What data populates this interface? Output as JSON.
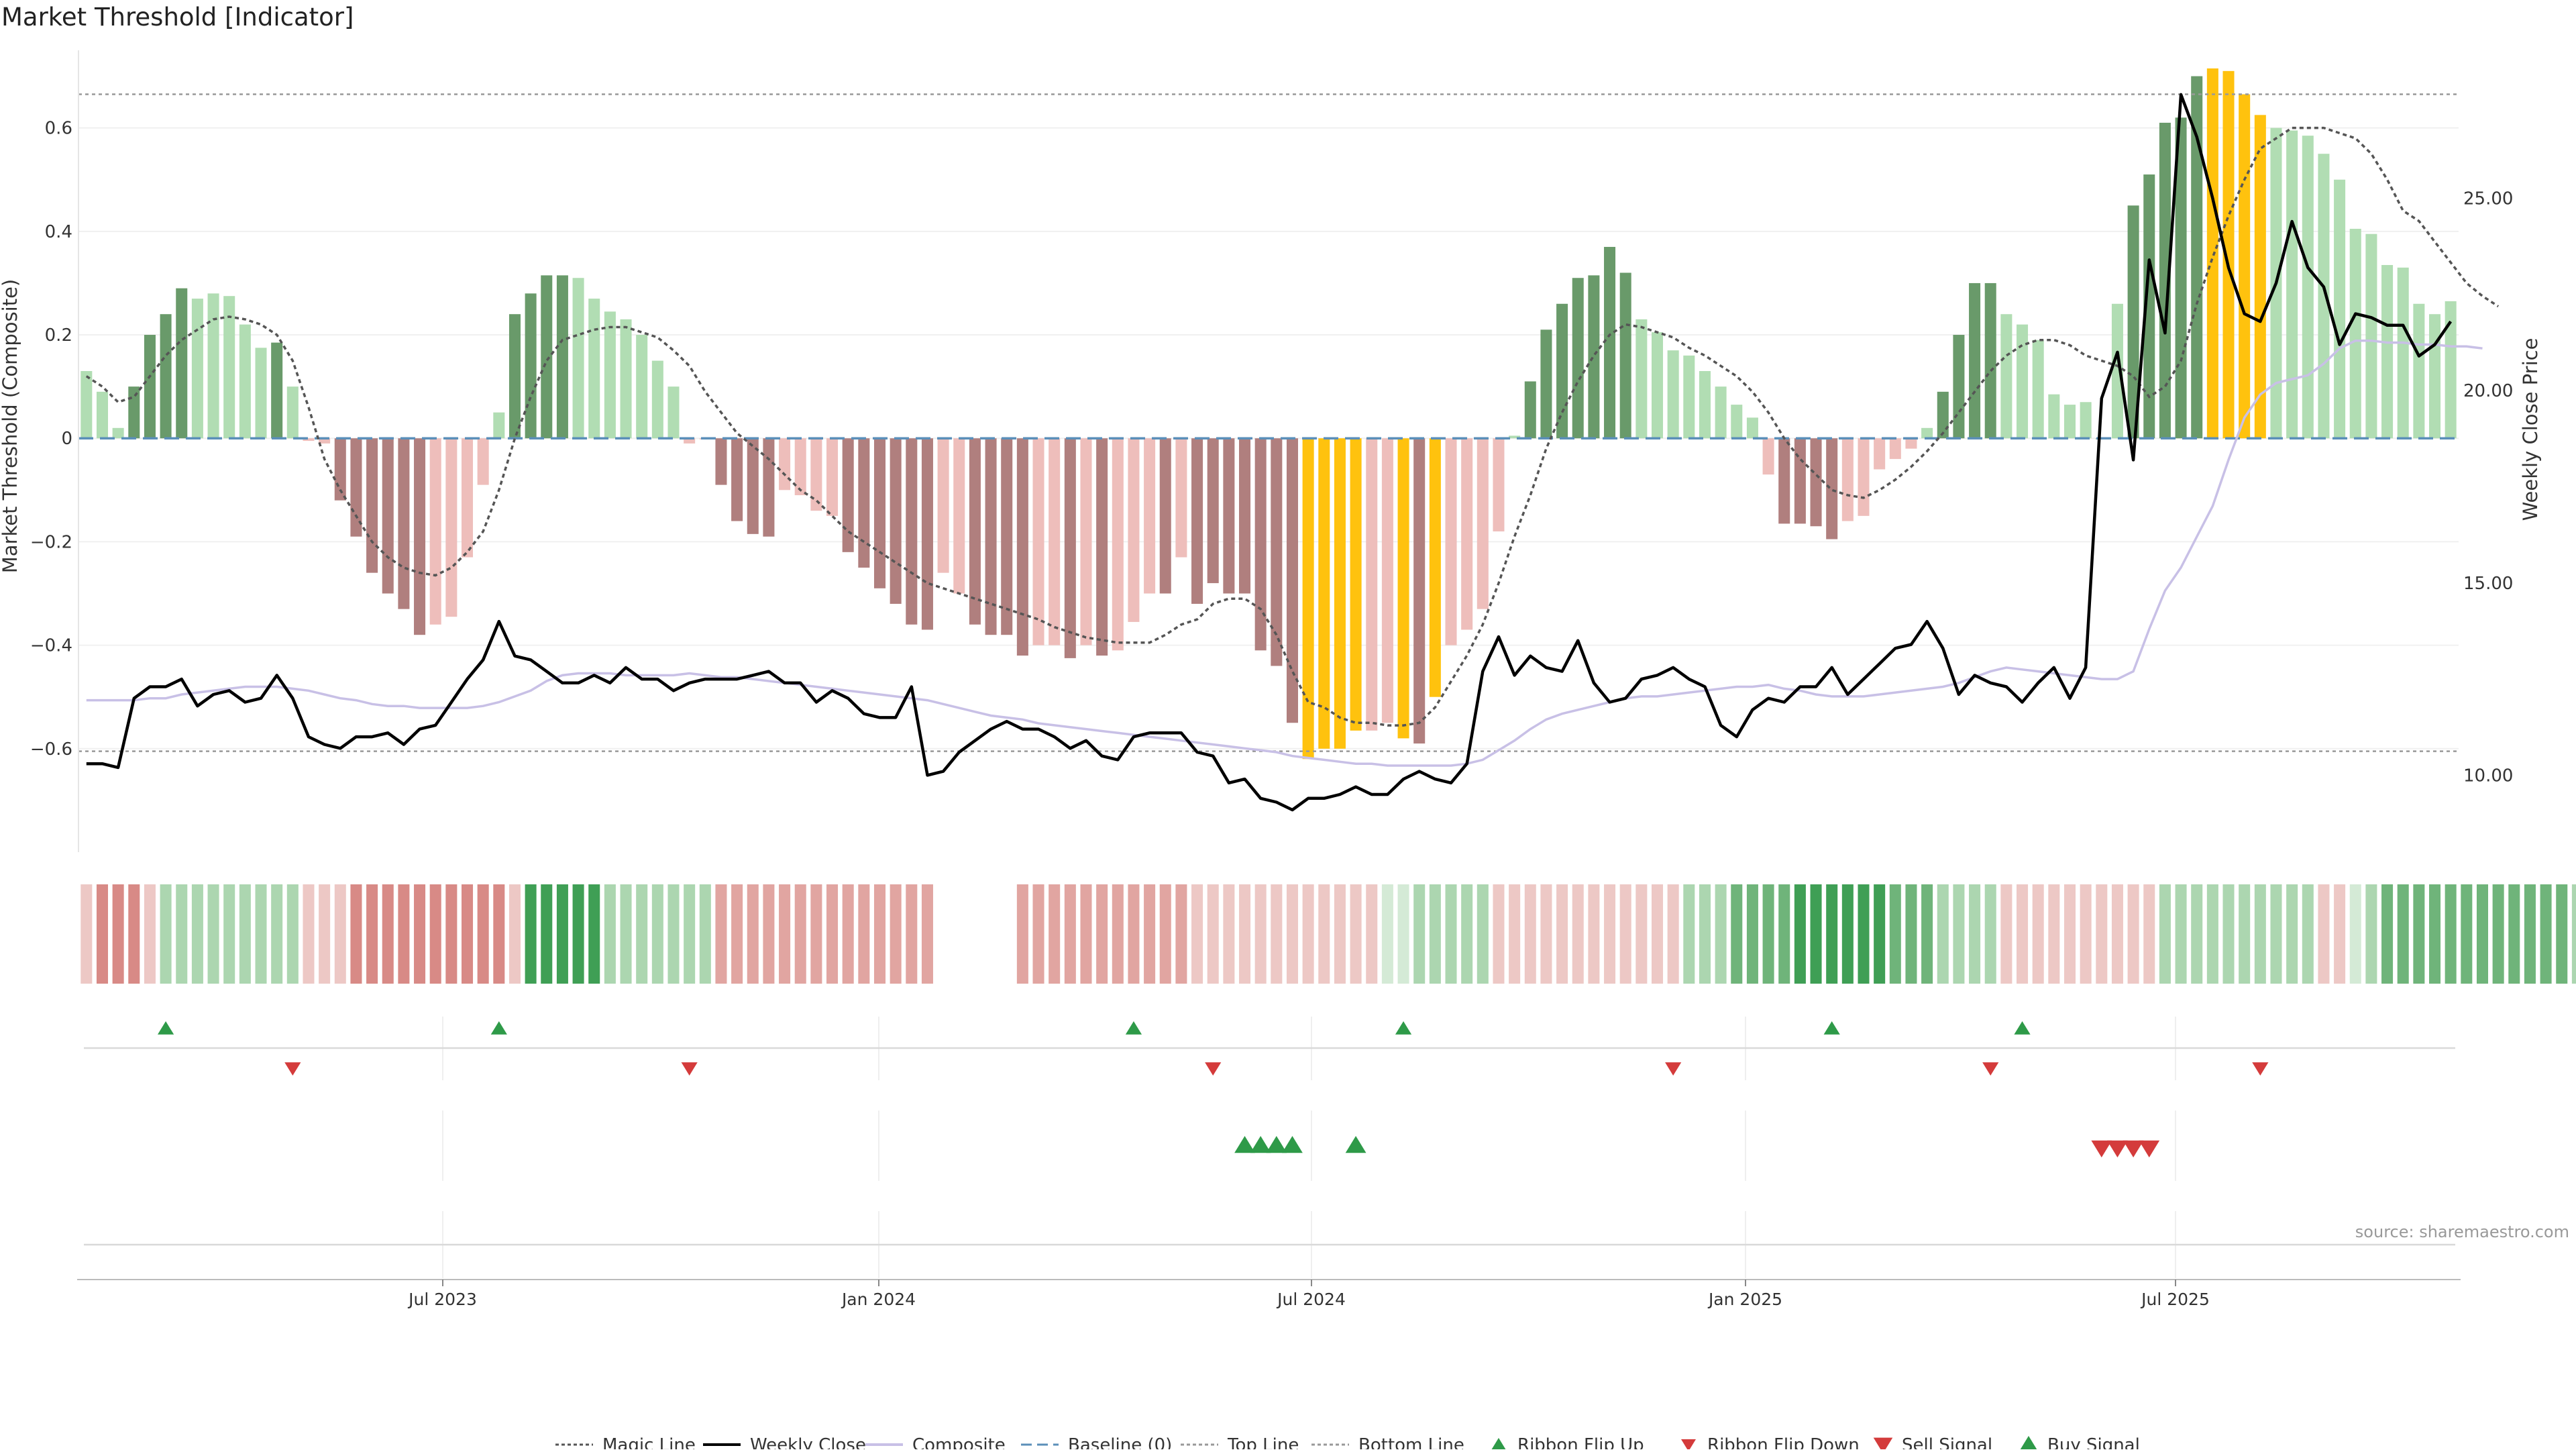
{
  "title": "Market Threshold [Indicator]",
  "source": "source: sharemaestro.com",
  "colors": {
    "bar_green_dark": "#699a6a",
    "bar_green_light": "#b1ddb3",
    "bar_red_dark": "#b07f7e",
    "bar_red_light": "#eebebb",
    "bar_gold": "#ffc20e",
    "weekly_close": "#000000",
    "composite": "#c8c0e6",
    "magic_line": "#555555",
    "baseline": "#5b8fb9",
    "ref_lines": "#999999",
    "signal_up": "#2e9a48",
    "signal_down": "#d43b3b"
  },
  "chart_data": {
    "type": "bar",
    "title": "Market Threshold [Indicator]",
    "ylabel": "Market Threshold (Composite)",
    "y2label": "Weekly Close Price",
    "ylim": [
      -0.8,
      0.75
    ],
    "y2lim": [
      8,
      28.85
    ],
    "yticks": [
      "0.6",
      "0.4",
      "0.2",
      "0",
      "−0.2",
      "−0.4",
      "−0.6"
    ],
    "y2ticks": [
      "25.00",
      "20.00",
      "15.00",
      "10.00"
    ],
    "xticks": [
      "Jul 2023",
      "Jan 2024",
      "Jul 2024",
      "Jan 2025",
      "Jul 2025"
    ],
    "top_line": 0.665,
    "bottom_line": -0.605,
    "bars": [
      0.13,
      0.09,
      0.02,
      0.1,
      0.2,
      0.24,
      0.29,
      0.27,
      0.28,
      0.275,
      0.22,
      0.175,
      0.185,
      0.1,
      -0.005,
      -0.01,
      -0.12,
      -0.19,
      -0.26,
      -0.3,
      -0.33,
      -0.38,
      -0.36,
      -0.345,
      -0.23,
      -0.09,
      0.05,
      0.24,
      0.28,
      0.315,
      0.315,
      0.31,
      0.27,
      0.245,
      0.23,
      0.2,
      0.15,
      0.1,
      -0.01,
      0.0,
      -0.09,
      -0.16,
      -0.185,
      -0.19,
      -0.1,
      -0.11,
      -0.14,
      -0.15,
      -0.22,
      -0.25,
      -0.29,
      -0.32,
      -0.36,
      -0.37,
      -0.26,
      -0.3,
      -0.36,
      -0.38,
      -0.38,
      -0.42,
      -0.4,
      -0.4,
      -0.425,
      -0.4,
      -0.42,
      -0.41,
      -0.355,
      -0.3,
      -0.3,
      -0.23,
      -0.32,
      -0.28,
      -0.3,
      -0.3,
      -0.41,
      -0.44,
      -0.55,
      -0.62,
      -0.6,
      -0.6,
      -0.565,
      -0.565,
      -0.55,
      -0.58,
      -0.59,
      -0.5,
      -0.4,
      -0.37,
      -0.33,
      -0.18,
      0.005,
      0.11,
      0.21,
      0.26,
      0.31,
      0.315,
      0.37,
      0.32,
      0.23,
      0.205,
      0.17,
      0.16,
      0.13,
      0.1,
      0.065,
      0.04,
      -0.07,
      -0.165,
      -0.165,
      -0.17,
      -0.195,
      -0.16,
      -0.15,
      -0.06,
      -0.04,
      -0.02,
      0.02,
      0.09,
      0.2,
      0.3,
      0.3,
      0.24,
      0.22,
      0.19,
      0.085,
      0.065,
      0.07,
      0.0,
      0.26,
      0.45,
      0.51,
      0.61,
      0.62,
      0.7,
      0.715,
      0.71,
      0.665,
      0.625,
      0.6,
      0.595,
      0.585,
      0.55,
      0.5,
      0.405,
      0.395,
      0.335,
      0.33,
      0.26,
      0.24,
      0.265
    ],
    "bar_colors": [
      "gl",
      "gl",
      "gl",
      "gd",
      "gd",
      "gd",
      "gd",
      "gl",
      "gl",
      "gl",
      "gl",
      "gl",
      "gd",
      "gl",
      "rl",
      "rl",
      "rd",
      "rd",
      "rd",
      "rd",
      "rd",
      "rd",
      "rl",
      "rl",
      "rl",
      "rl",
      "gl",
      "gd",
      "gd",
      "gd",
      "gd",
      "gl",
      "gl",
      "gl",
      "gl",
      "gl",
      "gl",
      "gl",
      "rl",
      "rl",
      "rd",
      "rd",
      "rd",
      "rd",
      "rl",
      "rl",
      "rl",
      "rl",
      "rd",
      "rd",
      "rd",
      "rd",
      "rd",
      "rd",
      "rl",
      "rl",
      "rd",
      "rd",
      "rd",
      "rd",
      "rl",
      "rl",
      "rd",
      "rl",
      "rd",
      "rl",
      "rl",
      "rl",
      "rd",
      "rl",
      "rd",
      "rd",
      "rd",
      "rd",
      "rd",
      "rd",
      "rd",
      "au",
      "au",
      "au",
      "au",
      "rl",
      "rl",
      "au",
      "rd",
      "au",
      "rl",
      "rl",
      "rl",
      "rl",
      "gl",
      "gd",
      "gd",
      "gd",
      "gd",
      "gd",
      "gd",
      "gd",
      "gl",
      "gl",
      "gl",
      "gl",
      "gl",
      "gl",
      "gl",
      "gl",
      "rl",
      "rd",
      "rd",
      "rd",
      "rd",
      "rl",
      "rl",
      "rl",
      "rl",
      "rl",
      "gl",
      "gd",
      "gd",
      "gd",
      "gd",
      "gl",
      "gl",
      "gl",
      "gl",
      "gl",
      "gl",
      "gd",
      "gl",
      "gd",
      "gd",
      "gd",
      "gd",
      "gd",
      "au",
      "au",
      "au",
      "au",
      "gl",
      "gl",
      "gl",
      "gl",
      "gl",
      "gl",
      "gl",
      "gl",
      "gl",
      "gl",
      "gl",
      "gl",
      "gl",
      "gd"
    ],
    "series": [
      {
        "name": "Magic Line",
        "y_axis": "left",
        "values": [
          0.12,
          0.1,
          0.07,
          0.08,
          0.12,
          0.16,
          0.19,
          0.21,
          0.23,
          0.235,
          0.23,
          0.22,
          0.2,
          0.15,
          0.06,
          -0.04,
          -0.1,
          -0.15,
          -0.2,
          -0.23,
          -0.25,
          -0.26,
          -0.265,
          -0.25,
          -0.22,
          -0.18,
          -0.1,
          0.0,
          0.08,
          0.15,
          0.19,
          0.2,
          0.21,
          0.215,
          0.215,
          0.205,
          0.195,
          0.17,
          0.14,
          0.09,
          0.05,
          0.01,
          -0.015,
          -0.04,
          -0.07,
          -0.1,
          -0.12,
          -0.15,
          -0.18,
          -0.2,
          -0.22,
          -0.24,
          -0.26,
          -0.28,
          -0.29,
          -0.3,
          -0.31,
          -0.32,
          -0.33,
          -0.34,
          -0.35,
          -0.365,
          -0.375,
          -0.385,
          -0.39,
          -0.395,
          -0.395,
          -0.395,
          -0.38,
          -0.36,
          -0.35,
          -0.32,
          -0.31,
          -0.31,
          -0.33,
          -0.38,
          -0.45,
          -0.51,
          -0.52,
          -0.54,
          -0.55,
          -0.55,
          -0.555,
          -0.555,
          -0.55,
          -0.52,
          -0.47,
          -0.42,
          -0.36,
          -0.28,
          -0.19,
          -0.11,
          -0.02,
          0.05,
          0.11,
          0.16,
          0.2,
          0.22,
          0.215,
          0.205,
          0.195,
          0.175,
          0.16,
          0.14,
          0.12,
          0.09,
          0.05,
          0.0,
          -0.04,
          -0.07,
          -0.1,
          -0.11,
          -0.115,
          -0.1,
          -0.08,
          -0.055,
          -0.025,
          0.01,
          0.05,
          0.09,
          0.13,
          0.16,
          0.18,
          0.19,
          0.19,
          0.18,
          0.16,
          0.15,
          0.14,
          0.12,
          0.08,
          0.1,
          0.15,
          0.26,
          0.35,
          0.43,
          0.5,
          0.56,
          0.58,
          0.6,
          0.6,
          0.6,
          0.59,
          0.58,
          0.55,
          0.5,
          0.44,
          0.42,
          0.38,
          0.34,
          0.3,
          0.275,
          0.255
        ]
      },
      {
        "name": "Weekly Close",
        "y_axis": "right",
        "values": [
          10.3,
          10.3,
          10.2,
          12.0,
          12.3,
          12.3,
          12.5,
          11.8,
          12.1,
          12.2,
          11.9,
          12.0,
          12.6,
          12.0,
          11.0,
          10.8,
          10.7,
          11.0,
          11.0,
          11.1,
          10.8,
          11.2,
          11.3,
          11.9,
          12.5,
          13.0,
          14.0,
          13.1,
          13.0,
          12.7,
          12.4,
          12.4,
          12.6,
          12.4,
          12.8,
          12.5,
          12.5,
          12.2,
          12.4,
          12.5,
          12.5,
          12.5,
          12.6,
          12.7,
          12.4,
          12.4,
          11.9,
          12.2,
          12.0,
          11.6,
          11.5,
          11.5,
          12.3,
          10.0,
          10.1,
          10.6,
          10.9,
          11.2,
          11.4,
          11.2,
          11.2,
          11.0,
          10.7,
          10.9,
          10.5,
          10.4,
          11.0,
          11.1,
          11.1,
          11.1,
          10.6,
          10.5,
          9.8,
          9.9,
          9.4,
          9.3,
          9.1,
          9.4,
          9.4,
          9.5,
          9.7,
          9.5,
          9.5,
          9.9,
          10.1,
          9.9,
          9.8,
          10.3,
          12.7,
          13.6,
          12.6,
          13.1,
          12.8,
          12.7,
          13.5,
          12.4,
          11.9,
          12.0,
          12.5,
          12.6,
          12.8,
          12.5,
          12.3,
          11.3,
          11.0,
          11.7,
          12.0,
          11.9,
          12.3,
          12.3,
          12.8,
          12.1,
          12.5,
          12.9,
          13.3,
          13.4,
          14.0,
          13.3,
          12.1,
          12.6,
          12.4,
          12.3,
          11.9,
          12.4,
          12.8,
          12.0,
          12.8,
          19.8,
          21.0,
          18.2,
          23.4,
          21.5,
          27.7,
          26.6,
          25.0,
          23.2,
          22.0,
          21.8,
          22.8,
          24.4,
          23.2,
          22.7,
          21.2,
          22.0,
          21.9,
          21.7,
          21.7,
          20.9,
          21.2,
          21.8
        ]
      },
      {
        "name": "Composite",
        "y_axis": "right",
        "values": [
          11.95,
          11.95,
          11.95,
          11.95,
          12.0,
          12.0,
          12.1,
          12.15,
          12.2,
          12.25,
          12.3,
          12.3,
          12.3,
          12.25,
          12.2,
          12.1,
          12.0,
          11.95,
          11.85,
          11.8,
          11.8,
          11.75,
          11.75,
          11.75,
          11.75,
          11.8,
          11.9,
          12.05,
          12.2,
          12.45,
          12.6,
          12.65,
          12.65,
          12.65,
          12.6,
          12.6,
          12.6,
          12.6,
          12.65,
          12.6,
          12.55,
          12.55,
          12.5,
          12.45,
          12.4,
          12.35,
          12.3,
          12.25,
          12.2,
          12.15,
          12.1,
          12.05,
          12.0,
          11.95,
          11.85,
          11.75,
          11.65,
          11.55,
          11.5,
          11.45,
          11.35,
          11.3,
          11.25,
          11.2,
          11.15,
          11.1,
          11.05,
          11.0,
          10.95,
          10.9,
          10.85,
          10.8,
          10.75,
          10.7,
          10.65,
          10.6,
          10.5,
          10.45,
          10.4,
          10.35,
          10.3,
          10.3,
          10.25,
          10.25,
          10.25,
          10.25,
          10.25,
          10.3,
          10.4,
          10.65,
          10.9,
          11.2,
          11.45,
          11.6,
          11.7,
          11.8,
          11.9,
          12.0,
          12.05,
          12.05,
          12.1,
          12.15,
          12.2,
          12.25,
          12.3,
          12.3,
          12.35,
          12.25,
          12.2,
          12.1,
          12.05,
          12.05,
          12.05,
          12.1,
          12.15,
          12.2,
          12.25,
          12.3,
          12.4,
          12.55,
          12.7,
          12.8,
          12.75,
          12.7,
          12.65,
          12.6,
          12.55,
          12.5,
          12.5,
          12.7,
          13.8,
          14.8,
          15.4,
          16.2,
          17.0,
          18.2,
          19.3,
          19.9,
          20.2,
          20.3,
          20.4,
          20.7,
          21.1,
          21.3,
          21.3,
          21.25,
          21.25,
          21.2,
          21.2,
          21.15,
          21.15,
          21.1
        ]
      }
    ],
    "ribbon": [
      "rl",
      "rd",
      "rd",
      "rd",
      "rl",
      "gl",
      "gl",
      "gl",
      "gl",
      "gl",
      "gl",
      "gl",
      "gl",
      "gl",
      "rl",
      "rl",
      "rl",
      "rd",
      "rd",
      "rd",
      "rd",
      "rd",
      "rd",
      "rd",
      "rd",
      "rd",
      "rd",
      "rl",
      "gd",
      "gd",
      "gd",
      "gd",
      "gd",
      "gl",
      "gl",
      "gl",
      "gl",
      "gl",
      "gl",
      "gl",
      "rm",
      "rm",
      "rm",
      "rm",
      "rm",
      "rm",
      "rm",
      "rm",
      "rm",
      "rm",
      "rm",
      "rm",
      "rm",
      "rm",
      "rm",
      "rm",
      "rm",
      "rm",
      "rm",
      "rm",
      "rm",
      "rm",
      "rm",
      "rm",
      "rm",
      "rm",
      "rm",
      "rm",
      "rm",
      "rm",
      "rl",
      "rl",
      "rl",
      "rl",
      "rl",
      "rl",
      "rl",
      "rl",
      "rl",
      "rl",
      "rl",
      "rl",
      "gxl",
      "gxl",
      "gl",
      "gl",
      "gl",
      "gl",
      "gl",
      "rl",
      "rl",
      "rl",
      "rl",
      "rl",
      "rl",
      "rl",
      "rl",
      "rl",
      "rl",
      "rl",
      "rl",
      "gl",
      "gl",
      "gl",
      "gm",
      "gm",
      "gm",
      "gm",
      "gd",
      "gd",
      "gd",
      "gd",
      "gd",
      "gd",
      "gm",
      "gm",
      "gm",
      "gl",
      "gl",
      "gl",
      "gl",
      "rl",
      "rl",
      "rl",
      "rl",
      "rl",
      "rl",
      "rl",
      "rl",
      "rl",
      "rl",
      "gl",
      "gl",
      "gl",
      "gl",
      "gl",
      "gl",
      "gl",
      "gl",
      "gl",
      "gl",
      "rl",
      "rl",
      "gxl",
      "gl",
      "gm",
      "gm",
      "gm",
      "gm",
      "gm",
      "gm",
      "gm",
      "gm",
      "gm",
      "gm",
      "gm",
      "gm",
      "gl",
      "gl",
      "gl",
      "rl",
      "rl",
      "rl",
      "rl",
      "rl",
      "rm",
      "rm",
      "rm"
    ],
    "ribbon_gap": [
      54,
      55,
      56,
      57,
      58
    ],
    "ribbon_flip_up": [
      5,
      26,
      66,
      83,
      110,
      122
    ],
    "ribbon_flip_down": [
      13,
      38,
      71,
      100,
      120,
      137
    ],
    "buy_signal": [
      73,
      74,
      75,
      76,
      80
    ],
    "sell_signal": [
      127,
      128,
      129,
      130
    ],
    "legend": [
      {
        "label": "Magic Line",
        "kind": "line",
        "style": "dotted",
        "color": "#555555"
      },
      {
        "label": "Weekly Close",
        "kind": "line",
        "style": "solid",
        "color": "#000000"
      },
      {
        "label": "Composite",
        "kind": "line",
        "style": "solid",
        "color": "#c8c0e6"
      },
      {
        "label": "Baseline (0)",
        "kind": "line",
        "style": "dashed",
        "color": "#5b8fb9"
      },
      {
        "label": "Top Line",
        "kind": "line",
        "style": "dotted",
        "color": "#999999"
      },
      {
        "label": "Bottom Line",
        "kind": "line",
        "style": "dotted",
        "color": "#999999"
      },
      {
        "label": "Ribbon Flip Up",
        "kind": "marker",
        "shape": "up-small",
        "color": "#2e9a48"
      },
      {
        "label": "Ribbon Flip Down",
        "kind": "marker",
        "shape": "down-small",
        "color": "#d43b3b"
      },
      {
        "label": "Sell Signal",
        "kind": "marker",
        "shape": "down",
        "color": "#d43b3b"
      },
      {
        "label": "Buy Signal",
        "kind": "marker",
        "shape": "up",
        "color": "#2e9a48"
      }
    ],
    "legend_position": "bottom-center"
  }
}
